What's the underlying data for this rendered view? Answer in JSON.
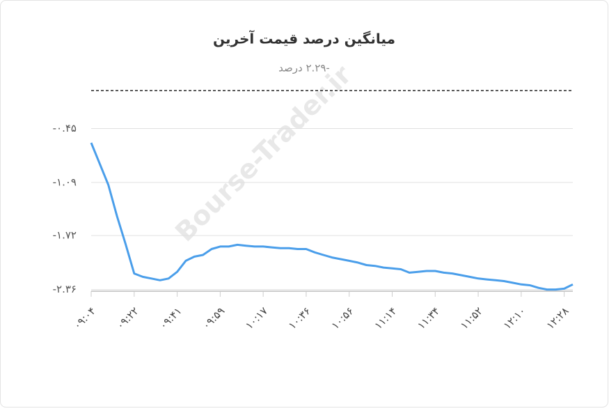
{
  "chart_data": {
    "type": "line",
    "title": "میانگین درصد قیمت آخرین",
    "subtitle": "-۲.۲۹ درصد",
    "watermark": "Bourse-Trader.ir",
    "categories": [
      "۰۹:۰۴",
      null,
      null,
      null,
      null,
      "۰۹:۲۲",
      null,
      null,
      null,
      null,
      "۰۹:۴۱",
      null,
      null,
      null,
      null,
      "۰۹:۵۹",
      null,
      null,
      null,
      null,
      "۱۰:۱۷",
      null,
      null,
      null,
      null,
      "۱۰:۳۶",
      null,
      null,
      null,
      null,
      "۱۰:۵۶",
      null,
      null,
      null,
      null,
      "۱۱:۱۴",
      null,
      null,
      null,
      null,
      "۱۱:۳۴",
      null,
      null,
      null,
      null,
      "۱۱:۵۲",
      null,
      null,
      null,
      null,
      "۱۲:۱۰",
      null,
      null,
      null,
      null,
      "۱۲:۲۸",
      null
    ],
    "series": [
      {
        "color": "#4a9eea",
        "values": [
          -0.62,
          -0.87,
          -1.12,
          -1.49,
          -1.82,
          -2.17,
          -2.21,
          -2.23,
          -2.25,
          -2.23,
          -2.15,
          -2.02,
          -1.97,
          -1.95,
          -1.88,
          -1.85,
          -1.85,
          -1.83,
          -1.84,
          -1.85,
          -1.85,
          -1.86,
          -1.87,
          -1.87,
          -1.88,
          -1.88,
          -1.92,
          -1.95,
          -1.98,
          -2.0,
          -2.02,
          -2.04,
          -2.07,
          -2.08,
          -2.1,
          -2.11,
          -2.12,
          -2.16,
          -2.15,
          -2.14,
          -2.14,
          -2.16,
          -2.17,
          -2.19,
          -2.21,
          -2.23,
          -2.24,
          -2.25,
          -2.26,
          -2.28,
          -2.3,
          -2.31,
          -2.34,
          -2.36,
          -2.36,
          -2.35,
          -2.3
        ]
      }
    ],
    "ylim": [
      -2.38,
      0
    ],
    "yticks": [
      {
        "value": -0.45,
        "label": "-۰.۴۵"
      },
      {
        "value": -1.09,
        "label": "-۱.۰۹"
      },
      {
        "value": -1.72,
        "label": "-۱.۷۲"
      },
      {
        "value": -2.36,
        "label": "-۲.۳۶"
      }
    ],
    "reference_line": 0,
    "grid": true
  }
}
